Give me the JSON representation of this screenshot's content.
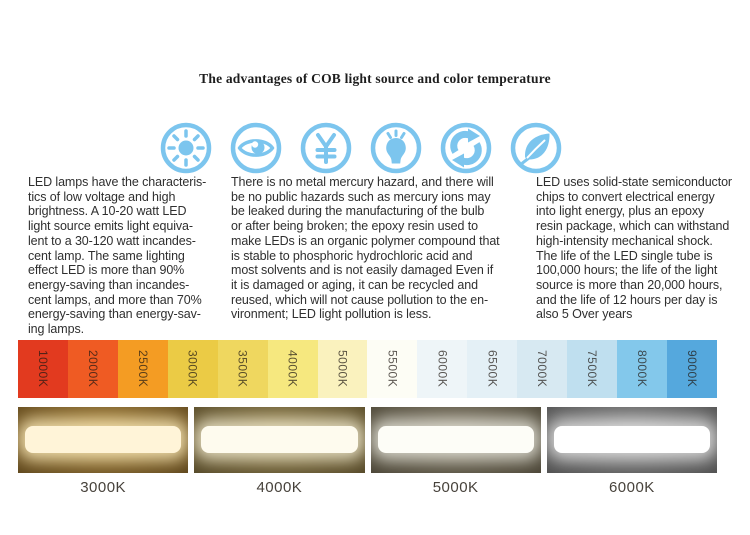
{
  "title": "The advantages of COB light source and color temperature",
  "accent_color": "#7CC5EE",
  "icons": [
    {
      "name": "sun-brightness-icon"
    },
    {
      "name": "eye-protection-icon"
    },
    {
      "name": "yen-cost-saving-icon"
    },
    {
      "name": "light-bulb-icon"
    },
    {
      "name": "recycle-icon"
    },
    {
      "name": "eco-leaf-icon"
    }
  ],
  "paragraphs": {
    "left": "LED lamps have the characteris-\ntics of low voltage and high\nbrightness. A 10-20 watt LED\nlight source emits light equiva-\nlent to a 30-120 watt incandes-\ncent lamp. The same lighting\neffect LED is more than 90%\nenergy-saving than incandes-\ncent lamps, and more than 70%\nenergy-saving than energy-sav-\ning lamps.",
    "middle": "There is no metal mercury hazard, and there will\nbe no public hazards such as mercury ions may\nbe leaked during the manufacturing of the bulb\nor after being broken; the epoxy resin used to\nmake LEDs is an organic polymer compound that\nis stable to phosphoric hydrochloric acid and\nmost solvents and is not easily damaged Even if\nit is damaged or aging, it can be recycled and\nreused, which will not cause pollution to the en-\nvironment; LED light pollution is less.",
    "right": "LED uses solid-state semiconductor\nchips to convert electrical energy\ninto light energy, plus an epoxy\nresin package, which can withstand\nhigh-intensity mechanical shock.\nThe life of the LED single tube is\n100,000 hours; the life of the light\nsource is more than 20,000 hours,\nand the life of 12 hours per day is\nalso 5 Over years"
  },
  "color_scale": {
    "segments": [
      {
        "label": "1000K",
        "color": "#E23A1F"
      },
      {
        "label": "2000K",
        "color": "#EF5B23"
      },
      {
        "label": "2500K",
        "color": "#F49C23"
      },
      {
        "label": "3000K",
        "color": "#EBCB45"
      },
      {
        "label": "3500K",
        "color": "#EFD75F"
      },
      {
        "label": "4000K",
        "color": "#F6E87F"
      },
      {
        "label": "5000K",
        "color": "#FAF2BE"
      },
      {
        "label": "5500K",
        "color": "#FDFDF5"
      },
      {
        "label": "6000K",
        "color": "#EEF5F8"
      },
      {
        "label": "6500K",
        "color": "#E4F0F6"
      },
      {
        "label": "7000K",
        "color": "#D7E9F2"
      },
      {
        "label": "7500K",
        "color": "#BFDFEF"
      },
      {
        "label": "8000K",
        "color": "#83C8EB"
      },
      {
        "label": "9000K",
        "color": "#55A8DD"
      }
    ]
  },
  "photos": [
    {
      "label": "3000K",
      "bg_center": "#a8843e",
      "bg_mid": "#6f5423",
      "bg_edge": "#30230c",
      "bar_color": "#fff4d8",
      "glow": "rgba(255,238,190,0.85)"
    },
    {
      "label": "4000K",
      "bg_center": "#93824f",
      "bg_mid": "#635530",
      "bg_edge": "#2d2614",
      "bar_color": "#fefbee",
      "glow": "rgba(252,246,220,0.8)"
    },
    {
      "label": "5000K",
      "bg_center": "#837b69",
      "bg_mid": "#575141",
      "bg_edge": "#29251b",
      "bar_color": "#fdfdf7",
      "glow": "rgba(250,250,240,0.75)"
    },
    {
      "label": "6000K",
      "bg_center": "#8c8c8c",
      "bg_mid": "#5c5c5c",
      "bg_edge": "#2e2e2e",
      "bar_color": "#ffffff",
      "glow": "rgba(255,255,255,0.7)"
    }
  ]
}
